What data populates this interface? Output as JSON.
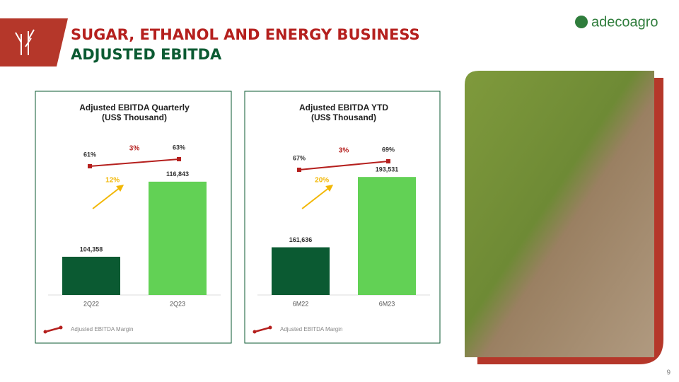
{
  "header": {
    "title_line1": "SUGAR, ETHANOL AND ENERGY BUSINESS",
    "title_line2": "ADJUSTED EBITDA",
    "logo": "adecoagro",
    "page_number": "9"
  },
  "chart_data": [
    {
      "type": "bar",
      "title": "Adjusted EBITDA Quarterly",
      "subtitle": "(US$ Thousand)",
      "categories": [
        "2Q22",
        "2Q23"
      ],
      "values": [
        104358,
        116843
      ],
      "value_labels": [
        "104,358",
        "116,843"
      ],
      "colors": [
        "#0b5a32",
        "#62d155"
      ],
      "ylim": [
        98000,
        120000
      ],
      "margin": {
        "name": "Adjusted EBITDA Margin",
        "values": [
          61,
          63
        ],
        "value_labels": [
          "61%",
          "63%"
        ],
        "color": "#b5201e",
        "y2lim": [
          48,
          72
        ]
      },
      "annotations": {
        "margin_change": "3%",
        "value_change": "12%"
      }
    },
    {
      "type": "bar",
      "title": "Adjusted EBITDA YTD",
      "subtitle": "(US$ Thousand)",
      "categories": [
        "6M22",
        "6M23"
      ],
      "values": [
        161636,
        193531
      ],
      "value_labels": [
        "161,636",
        "193,531"
      ],
      "colors": [
        "#0b5a32",
        "#62d155"
      ],
      "ylim": [
        140000,
        200000
      ],
      "margin": {
        "name": "Adjusted EBITDA Margin",
        "values": [
          67,
          69
        ],
        "value_labels": [
          "67%",
          "69%"
        ],
        "color": "#b5201e",
        "y2lim": [
          57,
          77
        ]
      },
      "annotations": {
        "margin_change": "3%",
        "value_change": "20%"
      }
    }
  ]
}
